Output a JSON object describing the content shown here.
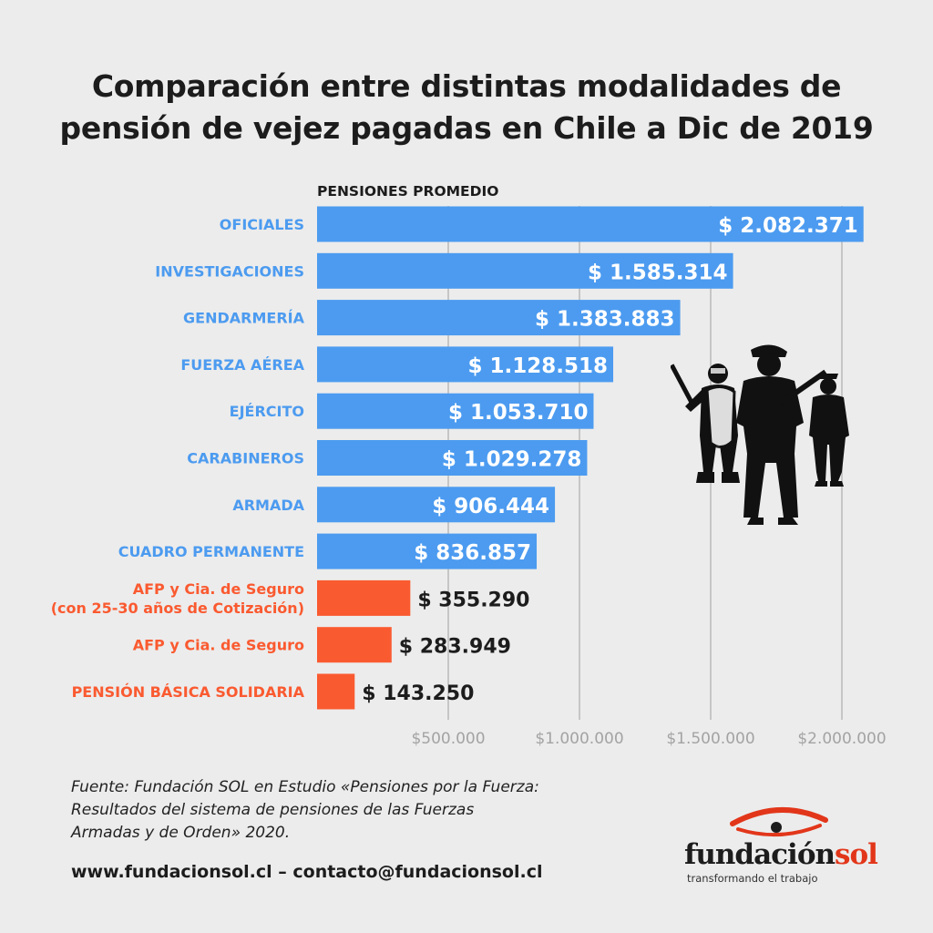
{
  "title_lines": [
    "Comparación entre distintas modalidades de",
    "pensión de vejez pagadas en Chile a Dic de 2019"
  ],
  "chart_data": {
    "type": "bar",
    "orientation": "horizontal",
    "header": "PENSIONES PROMEDIO",
    "label_lines": [
      [
        "OFICIALES"
      ],
      [
        "INVESTIGACIONES"
      ],
      [
        "GENDARMERÍA"
      ],
      [
        "FUERZA AÉREA"
      ],
      [
        "EJÉRCITO"
      ],
      [
        "CARABINEROS"
      ],
      [
        "ARMADA"
      ],
      [
        "CUADRO PERMANENTE"
      ],
      [
        "AFP y Cia. de Seguro",
        "(con 25-30 años de Cotización)"
      ],
      [
        "AFP y Cia. de Seguro"
      ],
      [
        "PENSIÓN BÁSICA SOLIDARIA"
      ]
    ],
    "values": [
      2082371,
      1585314,
      1383883,
      1128518,
      1053710,
      1029278,
      906444,
      836857,
      355290,
      283949,
      143250
    ],
    "value_labels": [
      "$ 2.082.371",
      "$ 1.585.314",
      "$ 1.383.883",
      "$ 1.128.518",
      "$ 1.053.710",
      "$ 1.029.278",
      "$ 906.444",
      "$ 836.857",
      "$ 355.290",
      "$ 283.949",
      "$ 143.250"
    ],
    "group": [
      "uniformed",
      "uniformed",
      "uniformed",
      "uniformed",
      "uniformed",
      "uniformed",
      "uniformed",
      "uniformed",
      "civil",
      "civil",
      "civil"
    ],
    "colors": {
      "uniformed": "#4c9bf0",
      "civil": "#fa5a30"
    },
    "x_ticks": [
      500000,
      1000000,
      1500000,
      2000000
    ],
    "x_tick_labels": [
      "$500.000",
      "$1.000.000",
      "$1.500.000",
      "$2.000.000"
    ],
    "xlim": [
      0,
      2200000
    ],
    "grid": "vertical"
  },
  "source_text": "Fuente: Fundación SOL en Estudio «Pensiones por la Fuerza: Resultados del sistema de pensiones de las Fuerzas Armadas y de Orden» 2020.",
  "contact": {
    "website": "www.fundacionsol.cl",
    "separator": "–",
    "email": "contacto@fundacionsol.cl"
  },
  "logo": {
    "name_part1": "fundación",
    "name_part2": "sol",
    "tagline": "transformando el trabajo",
    "icon": "eye-icon"
  },
  "illustration": {
    "icon": "soldiers-silhouette-icon"
  }
}
